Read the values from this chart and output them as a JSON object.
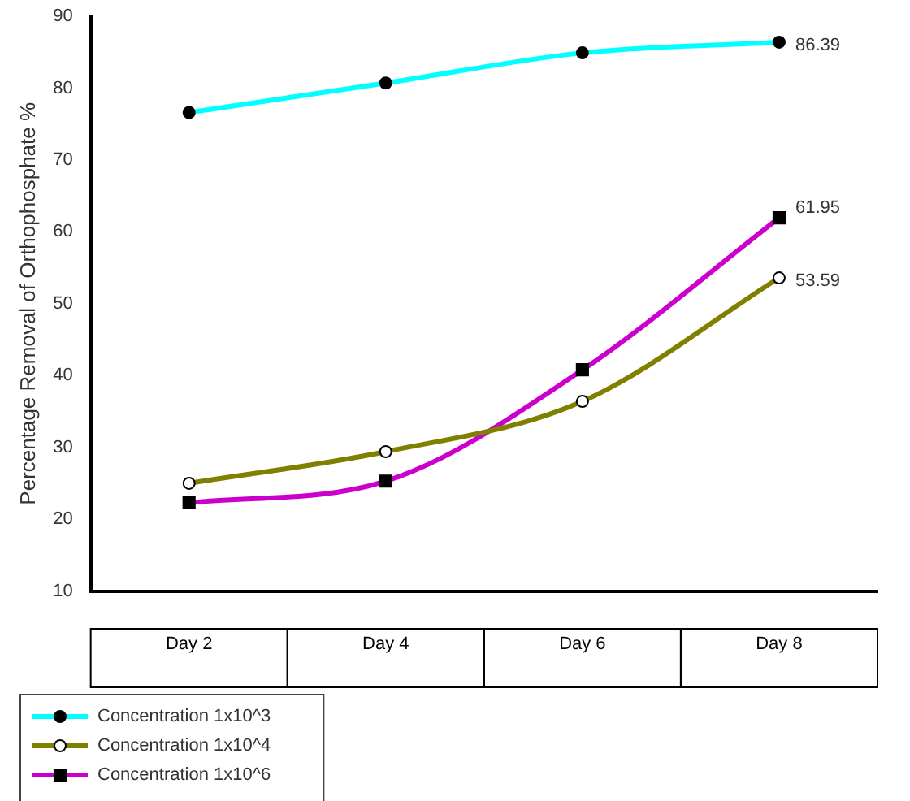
{
  "chart_data": {
    "type": "line",
    "ylabel": "Percentage Removal of Orthophosphate %",
    "categories": [
      "Day 2",
      "Day 4",
      "Day 6",
      "Day 8"
    ],
    "series": [
      {
        "name": "Concentration 1x10^3",
        "color": "#00ffff",
        "marker": "circle",
        "values": [
          76.6,
          80.7,
          84.9,
          86.39
        ],
        "value_labels": [
          null,
          null,
          null,
          "86.39"
        ]
      },
      {
        "name": "Concentration 1x10^4",
        "color": "#808000",
        "marker": "circle",
        "values": [
          25.0,
          29.4,
          36.4,
          53.59
        ],
        "value_labels": [
          null,
          null,
          null,
          "53.59"
        ]
      },
      {
        "name": "Concentration 1x10^6",
        "color": "#cc00cc",
        "marker": "square",
        "values": [
          22.3,
          25.3,
          40.8,
          61.95
        ],
        "value_labels": [
          null,
          null,
          null,
          "61.95"
        ]
      }
    ],
    "ylim": [
      10,
      90
    ],
    "yticks": [
      10,
      20,
      30,
      40,
      50,
      60,
      70,
      80,
      90
    ],
    "grid": false,
    "legend": "bottom left"
  }
}
